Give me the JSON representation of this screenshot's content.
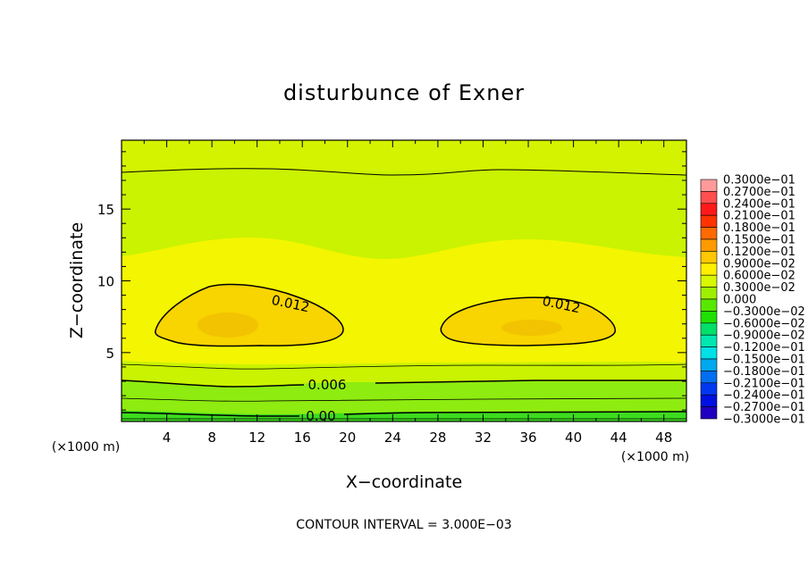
{
  "chart_data": {
    "type": "heatmap",
    "title": "disturbunce of Exner",
    "xlabel": "X−coordinate",
    "ylabel": "Z−coordinate",
    "x_unit": "(×1000 m)",
    "y_unit": "(×1000 m)",
    "xlim": [
      0,
      50
    ],
    "ylim": [
      0.2,
      19.8
    ],
    "x_ticks": [
      4,
      8,
      12,
      16,
      20,
      24,
      28,
      32,
      36,
      40,
      44,
      48
    ],
    "y_ticks": [
      5,
      10,
      15
    ],
    "footer": "CONTOUR INTERVAL = 3.000E−03",
    "contour_labels": [
      "0.012",
      "0.012",
      "0.006",
      "0.00"
    ],
    "colorbar": {
      "levels": [
        0.03,
        0.027,
        0.024,
        0.021,
        0.018,
        0.015,
        0.012,
        0.009,
        0.006,
        0.003,
        0.0,
        -0.003,
        -0.006,
        -0.009,
        -0.012,
        -0.015,
        -0.018,
        -0.021,
        -0.024,
        -0.027,
        -0.03
      ],
      "labels": [
        "0.3000e−01",
        "0.2700e−01",
        "0.2400e−01",
        "0.2100e−01",
        "0.1800e−01",
        "0.1500e−01",
        "0.1200e−01",
        "0.9000e−02",
        "0.6000e−02",
        "0.3000e−02",
        "0.000",
        "−0.3000e−02",
        "−0.6000e−02",
        "−0.9000e−02",
        "−0.1200e−01",
        "−0.1500e−01",
        "−0.1800e−01",
        "−0.2100e−01",
        "−0.2400e−01",
        "−0.2700e−01",
        "−0.3000e−01"
      ],
      "colors": [
        "#ff9a9a",
        "#ff4f4f",
        "#ff1a1a",
        "#ff3300",
        "#ff6a00",
        "#ff9a00",
        "#ffc800",
        "#ffef00",
        "#d8f800",
        "#9ff000",
        "#58e800",
        "#1fe000",
        "#00e06a",
        "#00e8b0",
        "#00e0e8",
        "#00a8f0",
        "#006ef0",
        "#0038f0",
        "#0010e0",
        "#2000c0",
        "#6020a0"
      ]
    },
    "field_colors": {
      "lt_0.003": "#3cdc1e",
      "0.003_0.006": "#8eec10",
      "0.006_0.009": "#c9f300",
      "0.009_0.012": "#f4f500",
      "0.012_0.015": "#f8d400",
      "peak": "#f2c300"
    }
  }
}
